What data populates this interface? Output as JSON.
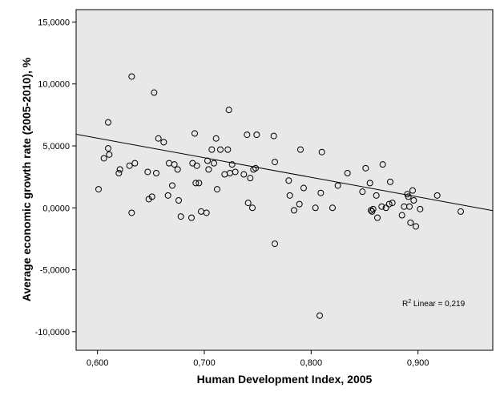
{
  "chart_data": {
    "type": "scatter",
    "title": "",
    "xlabel": "Human Development Index, 2005",
    "ylabel": "Average economic growth rate (2005-2010), %",
    "xlim": [
      0.58,
      0.97
    ],
    "ylim": [
      -11.5,
      16.0
    ],
    "x_ticks": [
      0.6,
      0.7,
      0.8,
      0.9
    ],
    "x_tick_labels": [
      "0,600",
      "0,700",
      "0,800",
      "0,900"
    ],
    "y_ticks": [
      -10,
      -5,
      0,
      5,
      10,
      15
    ],
    "y_tick_labels": [
      "-10,0000",
      "-5,0000",
      "0,0000",
      "5,0000",
      "10,0000",
      "15,0000"
    ],
    "plot_background": "#e8e8e8",
    "marker": "open-circle",
    "fit_line": {
      "type": "linear",
      "intercept": 15.11,
      "slope": -15.81
    },
    "r2_label": {
      "prefix": "R",
      "sup": "2",
      "suffix": " Linear = 0,219"
    },
    "points": [
      [
        0.601,
        1.5
      ],
      [
        0.606,
        4.0
      ],
      [
        0.61,
        6.9
      ],
      [
        0.61,
        4.8
      ],
      [
        0.611,
        4.3
      ],
      [
        0.62,
        2.8
      ],
      [
        0.621,
        3.1
      ],
      [
        0.63,
        3.4
      ],
      [
        0.632,
        10.6
      ],
      [
        0.632,
        -0.4
      ],
      [
        0.635,
        3.6
      ],
      [
        0.647,
        2.9
      ],
      [
        0.648,
        0.7
      ],
      [
        0.651,
        0.9
      ],
      [
        0.653,
        9.3
      ],
      [
        0.655,
        2.8
      ],
      [
        0.657,
        5.6
      ],
      [
        0.662,
        5.3
      ],
      [
        0.666,
        1.0
      ],
      [
        0.667,
        3.6
      ],
      [
        0.67,
        1.8
      ],
      [
        0.672,
        3.5
      ],
      [
        0.675,
        3.1
      ],
      [
        0.676,
        0.6
      ],
      [
        0.678,
        -0.7
      ],
      [
        0.688,
        -0.8
      ],
      [
        0.689,
        3.6
      ],
      [
        0.691,
        6.0
      ],
      [
        0.692,
        2.0
      ],
      [
        0.693,
        3.4
      ],
      [
        0.695,
        2.0
      ],
      [
        0.697,
        -0.3
      ],
      [
        0.702,
        -0.4
      ],
      [
        0.703,
        3.8
      ],
      [
        0.704,
        3.1
      ],
      [
        0.707,
        4.7
      ],
      [
        0.709,
        3.6
      ],
      [
        0.711,
        5.6
      ],
      [
        0.712,
        1.5
      ],
      [
        0.715,
        4.7
      ],
      [
        0.719,
        2.7
      ],
      [
        0.722,
        4.7
      ],
      [
        0.723,
        7.9
      ],
      [
        0.724,
        2.8
      ],
      [
        0.726,
        3.5
      ],
      [
        0.729,
        2.9
      ],
      [
        0.737,
        2.7
      ],
      [
        0.74,
        5.9
      ],
      [
        0.741,
        0.4
      ],
      [
        0.743,
        2.4
      ],
      [
        0.745,
        0.0
      ],
      [
        0.746,
        3.1
      ],
      [
        0.748,
        3.2
      ],
      [
        0.749,
        5.9
      ],
      [
        0.765,
        5.8
      ],
      [
        0.766,
        3.7
      ],
      [
        0.766,
        -2.9
      ],
      [
        0.779,
        2.2
      ],
      [
        0.78,
        1.0
      ],
      [
        0.784,
        -0.2
      ],
      [
        0.789,
        0.3
      ],
      [
        0.79,
        4.7
      ],
      [
        0.793,
        1.6
      ],
      [
        0.804,
        0.0
      ],
      [
        0.808,
        -8.7
      ],
      [
        0.809,
        1.2
      ],
      [
        0.81,
        4.5
      ],
      [
        0.82,
        0.0
      ],
      [
        0.825,
        1.8
      ],
      [
        0.834,
        2.8
      ],
      [
        0.848,
        1.3
      ],
      [
        0.851,
        3.2
      ],
      [
        0.855,
        2.0
      ],
      [
        0.856,
        -0.2
      ],
      [
        0.857,
        -0.3
      ],
      [
        0.858,
        -0.1
      ],
      [
        0.861,
        1.0
      ],
      [
        0.862,
        -0.8
      ],
      [
        0.866,
        0.1
      ],
      [
        0.867,
        3.5
      ],
      [
        0.87,
        0.0
      ],
      [
        0.873,
        0.3
      ],
      [
        0.874,
        2.1
      ],
      [
        0.876,
        0.4
      ],
      [
        0.885,
        -0.6
      ],
      [
        0.887,
        0.1
      ],
      [
        0.89,
        1.1
      ],
      [
        0.891,
        0.9
      ],
      [
        0.892,
        0.1
      ],
      [
        0.893,
        -1.2
      ],
      [
        0.895,
        1.4
      ],
      [
        0.896,
        0.6
      ],
      [
        0.898,
        -1.5
      ],
      [
        0.902,
        -0.1
      ],
      [
        0.918,
        1.0
      ],
      [
        0.94,
        -0.3
      ]
    ]
  }
}
